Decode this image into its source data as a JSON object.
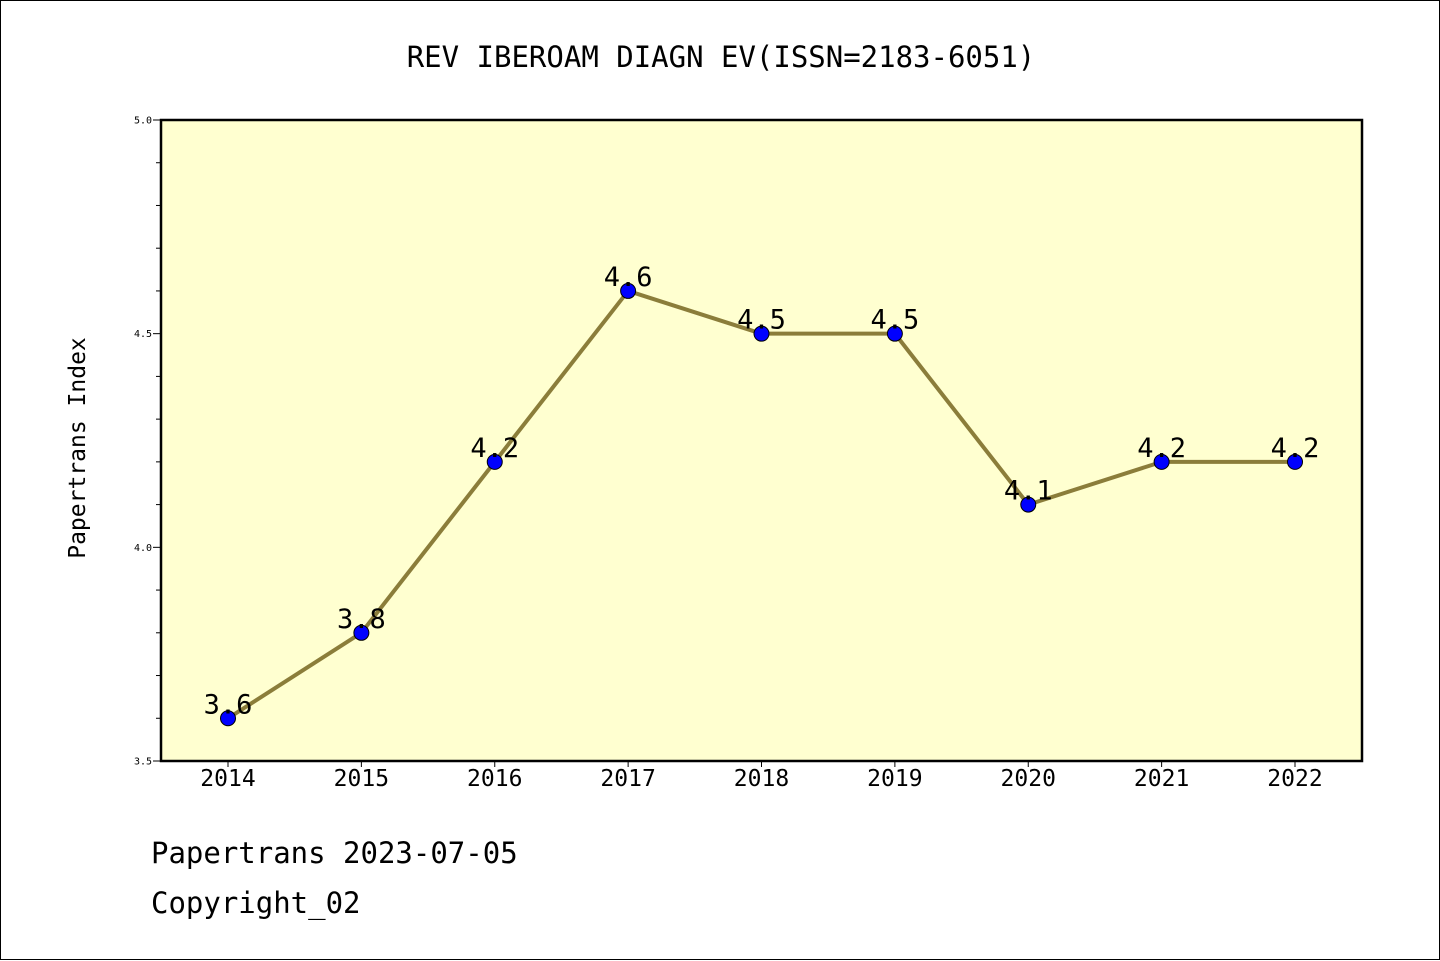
{
  "chart_data": {
    "type": "line",
    "title": "REV IBEROAM DIAGN EV(ISSN=2183-6051)",
    "xlabel": "",
    "ylabel": "Papertrans Index",
    "ylim": [
      3.5,
      5.0
    ],
    "yticks": [
      "3.5",
      "4.0",
      "4.5",
      "5.0"
    ],
    "categories": [
      "2014",
      "2015",
      "2016",
      "2017",
      "2018",
      "2019",
      "2020",
      "2021",
      "2022"
    ],
    "series": [
      {
        "values": [
          3.6,
          3.8,
          4.2,
          4.6,
          4.5,
          4.5,
          4.1,
          4.2,
          4.2
        ],
        "labels": [
          "3.6",
          "3.8",
          "4.2",
          "4.6",
          "4.5",
          "4.5",
          "4.1",
          "4.2",
          "4.2"
        ]
      }
    ],
    "grid": false,
    "colors": {
      "plot_background": "#ffffd0",
      "line": "#8b7d3a",
      "marker": "#0000ff"
    }
  },
  "footer": {
    "source_date": "Papertrans 2023-07-05",
    "copyright": "Copyright_02"
  }
}
